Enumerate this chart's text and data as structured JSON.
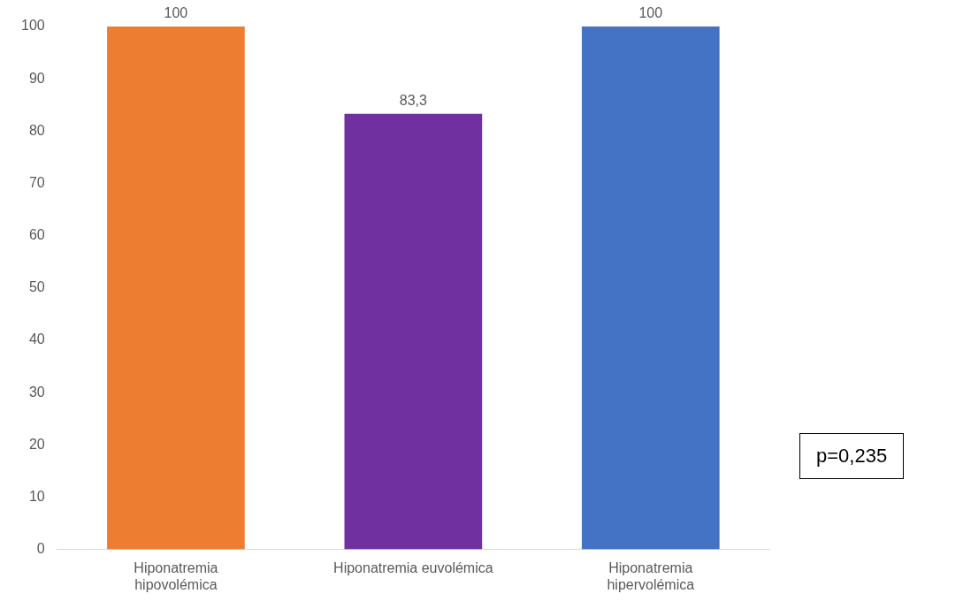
{
  "chart_data": {
    "type": "bar",
    "categories": [
      "Hiponatremia hipovolémica",
      "Hiponatremia euvolémica",
      "Hiponatremia hipervolémica"
    ],
    "values": [
      100,
      83.3,
      100
    ],
    "colors": [
      "#ed7d31",
      "#7030a0",
      "#4472c4"
    ],
    "value_labels": [
      "100",
      "83,3",
      "100"
    ],
    "ylim": [
      0,
      100
    ],
    "yticks": [
      0,
      10,
      20,
      30,
      40,
      50,
      60,
      70,
      80,
      90,
      100
    ],
    "grid": false,
    "legend": false,
    "annotations": [
      "p=0,235"
    ]
  }
}
